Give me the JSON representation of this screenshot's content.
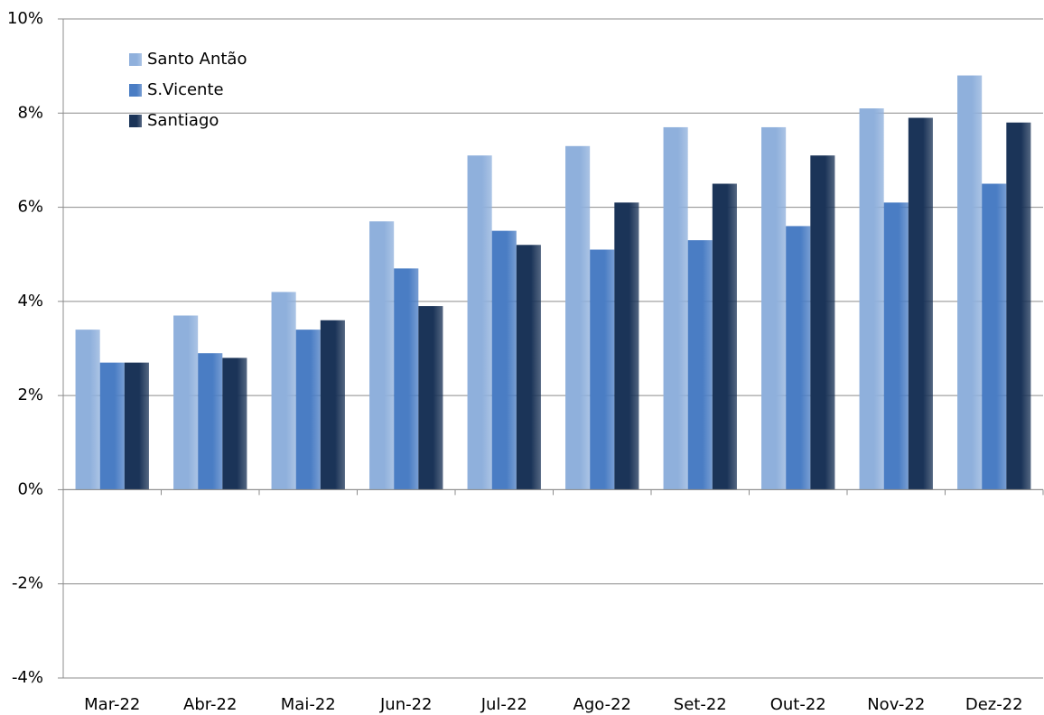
{
  "chart_data": {
    "type": "bar",
    "categories": [
      "Mar-22",
      "Abr-22",
      "Mai-22",
      "Jun-22",
      "Jul-22",
      "Ago-22",
      "Set-22",
      "Out-22",
      "Nov-22",
      "Dez-22"
    ],
    "series": [
      {
        "name": "Santo Antão",
        "color": "#8fb0dc",
        "values": [
          3.4,
          3.7,
          4.2,
          5.7,
          7.1,
          7.3,
          7.7,
          7.7,
          8.1,
          8.8
        ]
      },
      {
        "name": "S.Vicente",
        "color": "#4a7dc4",
        "values": [
          2.7,
          2.9,
          3.4,
          4.7,
          5.5,
          5.1,
          5.3,
          5.6,
          6.1,
          6.5
        ]
      },
      {
        "name": "Santiago",
        "color": "#1b3458",
        "values": [
          2.7,
          2.8,
          3.6,
          3.9,
          5.2,
          6.1,
          6.5,
          7.1,
          7.9,
          7.8
        ]
      }
    ],
    "ylim": [
      -4,
      10
    ],
    "yticks": [
      {
        "value": -4,
        "label": "-4%"
      },
      {
        "value": -2,
        "label": "-2%"
      },
      {
        "value": 0,
        "label": "0%"
      },
      {
        "value": 2,
        "label": "2%"
      },
      {
        "value": 4,
        "label": "4%"
      },
      {
        "value": 6,
        "label": "6%"
      },
      {
        "value": 8,
        "label": "8%"
      },
      {
        "value": 10,
        "label": "10%"
      }
    ],
    "grid": true,
    "legend": "top-left"
  }
}
